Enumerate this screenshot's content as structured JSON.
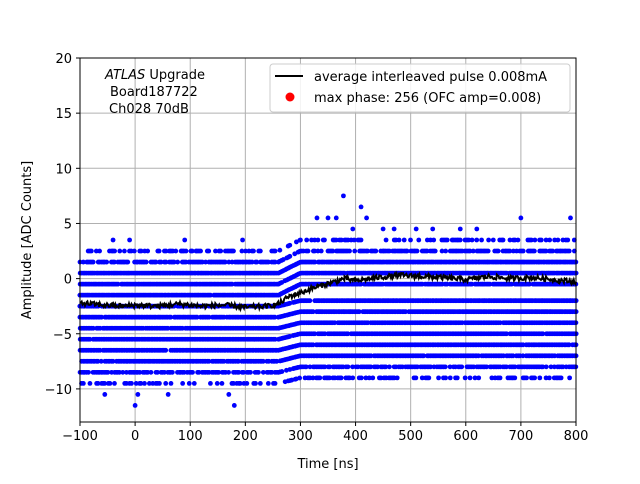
{
  "chart_data": {
    "type": "scatter",
    "title": "",
    "xlabel": "Time [ns]",
    "ylabel": "Amplitude [ADC Counts]",
    "xlim": [
      -100,
      800
    ],
    "ylim": [
      -13,
      20
    ],
    "grid": true,
    "legend_position": "top-right",
    "xticks": [
      -100,
      0,
      100,
      200,
      300,
      400,
      500,
      600,
      700,
      800
    ],
    "yticks": [
      -10,
      -5,
      0,
      5,
      10,
      15,
      20
    ],
    "xtick_labels": [
      "−100",
      "0",
      "100",
      "200",
      "300",
      "400",
      "500",
      "600",
      "700",
      "800"
    ],
    "ytick_labels": [
      "−10",
      "−5",
      "0",
      "5",
      "10",
      "15",
      "20"
    ],
    "annotation": {
      "experiment": "ATLAS",
      "experiment_suffix": " Upgrade",
      "line2": "Board187722",
      "line3": "Ch028 70dB"
    },
    "series": [
      {
        "name": "average interleaved pulse 0.008mA",
        "kind": "line",
        "color": "#000000",
        "x": [
          -100,
          -60,
          -20,
          0,
          40,
          80,
          120,
          160,
          200,
          240,
          260,
          280,
          300,
          320,
          340,
          360,
          380,
          400,
          440,
          480,
          520,
          560,
          600,
          640,
          680,
          720,
          760,
          800
        ],
        "y": [
          -2.2,
          -2.4,
          -2.5,
          -2.4,
          -2.5,
          -2.3,
          -2.5,
          -2.4,
          -2.6,
          -2.5,
          -2.3,
          -1.6,
          -1.3,
          -0.9,
          -0.6,
          -0.3,
          0.0,
          -0.2,
          0.1,
          0.3,
          0.2,
          0.1,
          -0.1,
          0.2,
          0.0,
          0.1,
          -0.1,
          -0.3
        ]
      },
      {
        "name": "max phase: 256 (OFC amp=0.008)",
        "kind": "marker",
        "color": "#ff0000",
        "x": [],
        "y": []
      }
    ],
    "scatter_samples": {
      "color": "#0000ff",
      "x_step": 3,
      "y_levels": [
        -9.5,
        -8.5,
        -7.5,
        -6.5,
        -5.5,
        -4.5,
        -3.5,
        -2.5,
        -1.5,
        -0.5,
        0.5,
        1.5,
        2.5
      ],
      "outliers_x": [
        -55,
        -40,
        -10,
        5,
        0,
        60,
        90,
        170,
        180,
        195,
        300,
        330,
        350,
        365,
        378,
        395,
        410,
        420,
        450,
        470,
        510,
        540,
        590,
        620,
        700,
        790
      ],
      "outliers_y": [
        -10.5,
        3.5,
        3.5,
        -10.5,
        -11.5,
        -10.5,
        3.5,
        -10.5,
        -11.5,
        3.5,
        3.5,
        5.5,
        5.5,
        5.5,
        7.5,
        4.5,
        6.5,
        5.5,
        4.5,
        4.5,
        4.5,
        4.5,
        4.5,
        4.5,
        5.5,
        5.5
      ]
    }
  }
}
